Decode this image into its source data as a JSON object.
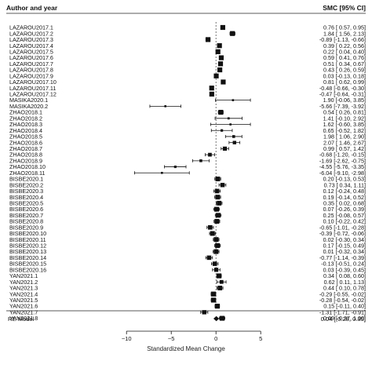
{
  "header": {
    "left": "Author and year",
    "right": "SMC [95% CI]"
  },
  "chart_data": {
    "type": "forest",
    "xlabel": "Standardized Mean Change",
    "xlim": [
      -13,
      7
    ],
    "xticks": [
      -10,
      -5,
      0,
      5
    ],
    "reference_line": 0,
    "studies": [
      {
        "label": "LAZAROU2017.1",
        "est": 0.76,
        "lo": 0.57,
        "hi": 0.95,
        "ci": "0.76 [ 0.57, 0.95]"
      },
      {
        "label": "LAZAROU2017.2",
        "est": 1.84,
        "lo": 1.56,
        "hi": 2.13,
        "ci": "1.84 [ 1.56, 2.13]"
      },
      {
        "label": "LAZAROU2017.3",
        "est": -0.89,
        "lo": -1.13,
        "hi": -0.66,
        "ci": "-0.89 [-1.13, -0.66]"
      },
      {
        "label": "LAZAROU2017.4",
        "est": 0.39,
        "lo": 0.22,
        "hi": 0.56,
        "ci": "0.39 [ 0.22, 0.56]"
      },
      {
        "label": "LAZAROU2017.5",
        "est": 0.22,
        "lo": 0.04,
        "hi": 0.4,
        "ci": "0.22 [ 0.04, 0.40]"
      },
      {
        "label": "LAZAROU2017.6",
        "est": 0.59,
        "lo": 0.41,
        "hi": 0.76,
        "ci": "0.59 [ 0.41, 0.76]"
      },
      {
        "label": "LAZAROU2017.7",
        "est": 0.51,
        "lo": 0.34,
        "hi": 0.67,
        "ci": "0.51 [ 0.34, 0.67]"
      },
      {
        "label": "LAZAROU2017.8",
        "est": 0.43,
        "lo": 0.26,
        "hi": 0.59,
        "ci": "0.43 [ 0.26, 0.59]"
      },
      {
        "label": "LAZAROU2017.9",
        "est": 0.03,
        "lo": -0.13,
        "hi": 0.18,
        "ci": "0.03 [-0.13, 0.18]"
      },
      {
        "label": "LAZAROU2017.10",
        "est": 0.81,
        "lo": 0.62,
        "hi": 0.99,
        "ci": "0.81 [ 0.62, 0.99]"
      },
      {
        "label": "LAZAROU2017.11",
        "est": -0.48,
        "lo": -0.66,
        "hi": -0.3,
        "ci": "-0.48 [-0.66, -0.30]"
      },
      {
        "label": "LAZAROU2017.12",
        "est": -0.47,
        "lo": -0.64,
        "hi": -0.31,
        "ci": "-0.47 [-0.64, -0.31]"
      },
      {
        "label": "MASIKA2020.1",
        "est": 1.9,
        "lo": -0.06,
        "hi": 3.85,
        "ci": "1.90 [-0.06, 3.85]"
      },
      {
        "label": "MASIKA2020.2",
        "est": -5.66,
        "lo": -7.39,
        "hi": -3.92,
        "ci": "-5.66 [-7.39, -3.92]"
      },
      {
        "label": "ZHAO2018.1",
        "est": 0.54,
        "lo": 0.26,
        "hi": 0.81,
        "ci": "0.54 [ 0.26, 0.81]"
      },
      {
        "label": "ZHAO2018.2",
        "est": 1.41,
        "lo": -0.1,
        "hi": 2.92,
        "ci": "1.41 [-0.10, 2.92]"
      },
      {
        "label": "ZHAO2018.3",
        "est": 1.62,
        "lo": -0.6,
        "hi": 3.85,
        "ci": "1.62 [-0.60, 3.85]"
      },
      {
        "label": "ZHAO2018.4",
        "est": 0.65,
        "lo": -0.52,
        "hi": 1.82,
        "ci": "0.65 [-0.52, 1.82]"
      },
      {
        "label": "ZHAO2018.5",
        "est": 1.98,
        "lo": 1.06,
        "hi": 2.9,
        "ci": "1.98 [ 1.06, 2.90]"
      },
      {
        "label": "ZHAO2018.6",
        "est": 2.07,
        "lo": 1.46,
        "hi": 2.67,
        "ci": "2.07 [ 1.46, 2.67]"
      },
      {
        "label": "ZHAO2018.7",
        "est": 0.99,
        "lo": 0.57,
        "hi": 1.42,
        "ci": "0.99 [ 0.57, 1.42]"
      },
      {
        "label": "ZHAO2018.8",
        "est": -0.68,
        "lo": -1.2,
        "hi": -0.15,
        "ci": "-0.68 [-1.20, -0.15]"
      },
      {
        "label": "ZHAO2018.9",
        "est": -1.69,
        "lo": -2.62,
        "hi": -0.75,
        "ci": "-1.69 [-2.62, -0.75]"
      },
      {
        "label": "ZHAO2018.10",
        "est": -4.55,
        "lo": -5.76,
        "hi": -3.35,
        "ci": "-4.55 [-5.76, -3.35]"
      },
      {
        "label": "ZHAO2018.11",
        "est": -6.04,
        "lo": -9.1,
        "hi": -2.98,
        "ci": "-6.04 [-9.10, -2.98]"
      },
      {
        "label": "BISBE2020.1",
        "est": 0.2,
        "lo": -0.13,
        "hi": 0.53,
        "ci": "0.20 [-0.13, 0.53]"
      },
      {
        "label": "BISBE2020.2",
        "est": 0.73,
        "lo": 0.34,
        "hi": 1.11,
        "ci": "0.73 [ 0.34, 1.11]"
      },
      {
        "label": "BISBE2020.3",
        "est": 0.12,
        "lo": -0.24,
        "hi": 0.48,
        "ci": "0.12 [-0.24, 0.48]"
      },
      {
        "label": "BISBE2020.4",
        "est": 0.19,
        "lo": -0.14,
        "hi": 0.52,
        "ci": "0.19 [-0.14, 0.52]"
      },
      {
        "label": "BISBE2020.5",
        "est": 0.35,
        "lo": 0.02,
        "hi": 0.68,
        "ci": "0.35 [ 0.02, 0.68]"
      },
      {
        "label": "BISBE2020.6",
        "est": 0.07,
        "lo": -0.26,
        "hi": 0.39,
        "ci": "0.07 [-0.26, 0.39]"
      },
      {
        "label": "BISBE2020.7",
        "est": 0.25,
        "lo": -0.08,
        "hi": 0.57,
        "ci": "0.25 [-0.08, 0.57]"
      },
      {
        "label": "BISBE2020.8",
        "est": 0.1,
        "lo": -0.22,
        "hi": 0.42,
        "ci": "0.10 [-0.22, 0.42]"
      },
      {
        "label": "BISBE2020.9",
        "est": -0.65,
        "lo": -1.01,
        "hi": -0.28,
        "ci": "-0.65 [-1.01, -0.28]"
      },
      {
        "label": "BISBE2020.10",
        "est": -0.39,
        "lo": -0.72,
        "hi": -0.06,
        "ci": "-0.39 [-0.72, -0.06]"
      },
      {
        "label": "BISBE2020.11",
        "est": 0.02,
        "lo": -0.3,
        "hi": 0.34,
        "ci": "0.02 [-0.30, 0.34]"
      },
      {
        "label": "BISBE2020.12",
        "est": 0.17,
        "lo": -0.15,
        "hi": 0.49,
        "ci": "0.17 [-0.15, 0.49]"
      },
      {
        "label": "BISBE2020.13",
        "est": 0.01,
        "lo": -0.32,
        "hi": 0.34,
        "ci": "0.01 [-0.32, 0.34]"
      },
      {
        "label": "BISBE2020.14",
        "est": -0.77,
        "lo": -1.14,
        "hi": -0.39,
        "ci": "-0.77 [-1.14, -0.39]"
      },
      {
        "label": "BISBE2020.15",
        "est": -0.13,
        "lo": -0.51,
        "hi": 0.24,
        "ci": "-0.13 [-0.51, 0.24]"
      },
      {
        "label": "BISBE2020.16",
        "est": 0.03,
        "lo": -0.39,
        "hi": 0.45,
        "ci": "0.03 [-0.39, 0.45]"
      },
      {
        "label": "YAN2021.1",
        "est": 0.34,
        "lo": 0.08,
        "hi": 0.6,
        "ci": "0.34 [ 0.08, 0.60]"
      },
      {
        "label": "YAN2021.2",
        "est": 0.62,
        "lo": 0.11,
        "hi": 1.13,
        "ci": "0.62 [ 0.11, 1.13]"
      },
      {
        "label": "YAN2021.3",
        "est": 0.44,
        "lo": 0.1,
        "hi": 0.78,
        "ci": "0.44 [ 0.10, 0.78]"
      },
      {
        "label": "YAN2021.4",
        "est": -0.29,
        "lo": -0.55,
        "hi": -0.02,
        "ci": "-0.29 [-0.55, -0.02]"
      },
      {
        "label": "YAN2021.5",
        "est": -0.28,
        "lo": -0.54,
        "hi": -0.02,
        "ci": "-0.28 [-0.54, -0.02]"
      },
      {
        "label": "YAN2021.6",
        "est": 0.15,
        "lo": -0.11,
        "hi": 0.4,
        "ci": "0.15 [-0.11, 0.40]"
      },
      {
        "label": "YAN2021.7",
        "est": -1.31,
        "lo": -1.71,
        "hi": -0.91,
        "ci": "-1.31 [-1.71, -0.91]"
      },
      {
        "label": "YAN2021.8",
        "est": 0.69,
        "lo": 0.37,
        "hi": 1.0,
        "ci": "0.69 [ 0.37, 1.00]"
      }
    ],
    "summary": {
      "label": "RE Model",
      "est": 0.04,
      "lo": -0.28,
      "hi": 0.35,
      "ci": "0.04 [-0.28, 0.35]"
    }
  }
}
